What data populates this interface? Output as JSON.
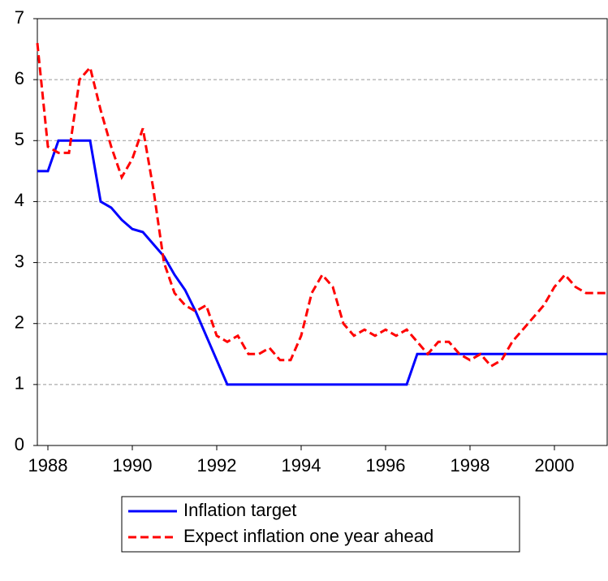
{
  "chart_data": {
    "type": "line",
    "x": [
      1987.75,
      1988,
      1988.25,
      1988.5,
      1988.75,
      1989,
      1989.25,
      1989.5,
      1989.75,
      1990,
      1990.25,
      1990.5,
      1990.75,
      1991,
      1991.25,
      1991.5,
      1991.75,
      1992,
      1992.25,
      1992.5,
      1992.75,
      1993,
      1993.25,
      1993.5,
      1993.75,
      1994,
      1994.25,
      1994.5,
      1994.75,
      1995,
      1995.25,
      1995.5,
      1995.75,
      1996,
      1996.25,
      1996.5,
      1996.75,
      1997,
      1997.25,
      1997.5,
      1997.75,
      1998,
      1998.25,
      1998.5,
      1998.75,
      1999,
      1999.25,
      1999.5,
      1999.75,
      2000,
      2000.25,
      2000.5,
      2000.75,
      2001,
      2001.25
    ],
    "series": [
      {
        "name": "Inflation target",
        "color": "#0000ff",
        "dash": false,
        "values": [
          4.5,
          4.5,
          5,
          5,
          5,
          5,
          4,
          3.9,
          3.7,
          3.55,
          3.5,
          3.3,
          3.1,
          2.8,
          2.55,
          2.2,
          1.8,
          1.4,
          1,
          1,
          1,
          1,
          1,
          1,
          1,
          1,
          1,
          1,
          1,
          1,
          1,
          1,
          1,
          1,
          1,
          1,
          1.5,
          1.5,
          1.5,
          1.5,
          1.5,
          1.5,
          1.5,
          1.5,
          1.5,
          1.5,
          1.5,
          1.5,
          1.5,
          1.5,
          1.5,
          1.5,
          1.5,
          1.5,
          1.5
        ]
      },
      {
        "name": "Expect inflation one year ahead",
        "color": "#ff0000",
        "dash": true,
        "values": [
          6.6,
          4.9,
          4.8,
          4.8,
          6.0,
          6.2,
          5.5,
          4.9,
          4.4,
          4.7,
          5.2,
          4.2,
          3.0,
          2.5,
          2.3,
          2.2,
          2.3,
          1.8,
          1.7,
          1.8,
          1.5,
          1.5,
          1.6,
          1.4,
          1.4,
          1.8,
          2.5,
          2.8,
          2.6,
          2.0,
          1.8,
          1.9,
          1.8,
          1.9,
          1.8,
          1.9,
          1.7,
          1.5,
          1.7,
          1.7,
          1.5,
          1.4,
          1.5,
          1.3,
          1.4,
          1.7,
          1.9,
          2.1,
          2.3,
          2.6,
          2.8,
          2.6,
          2.5,
          2.5,
          2.5
        ]
      }
    ],
    "xlim": [
      1987.75,
      2001.25
    ],
    "xticks": [
      1988,
      1990,
      1992,
      1994,
      1996,
      1998,
      2000
    ],
    "ylim": [
      0,
      7
    ],
    "yticks": [
      0,
      1,
      2,
      3,
      4,
      5,
      6,
      7
    ],
    "grid": true
  }
}
